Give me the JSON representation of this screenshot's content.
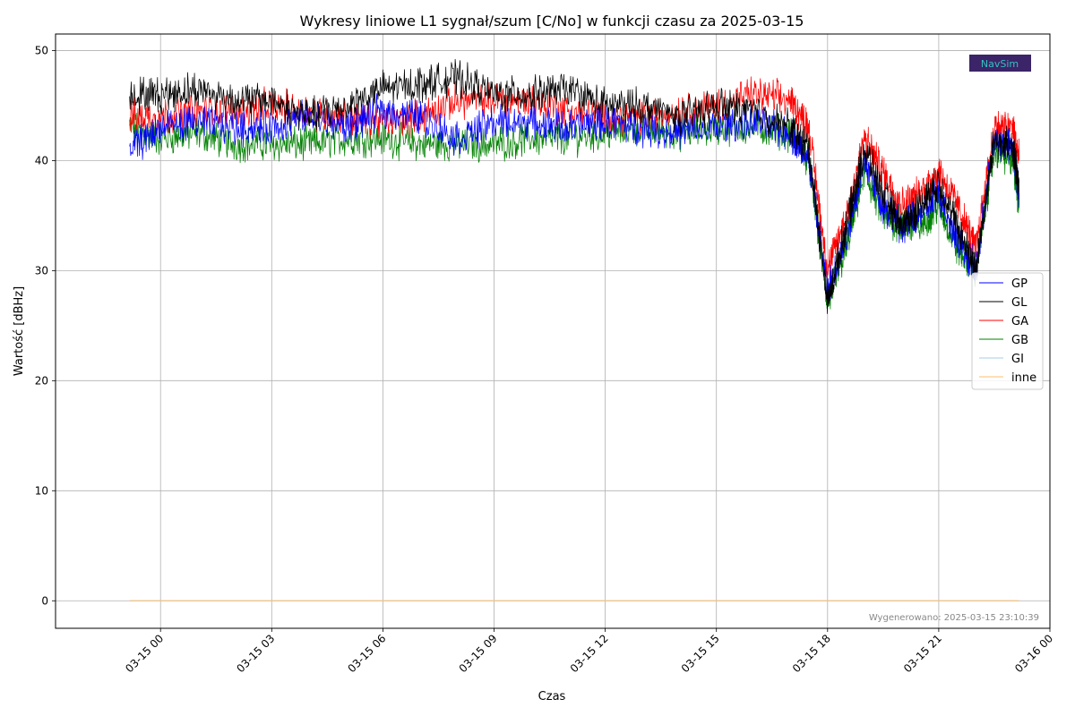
{
  "chart_data": {
    "type": "line",
    "title": "Wykresy liniowe L1 sygnał/szum [C/No] w funkcji czasu za 2025-03-15",
    "xlabel": "Czas",
    "ylabel": "Wartość [dBHz]",
    "xlim": [
      "2025-03-14 21:10",
      "2025-03-16 00:00"
    ],
    "ylim": [
      -2.5,
      51.5
    ],
    "x_ticks": [
      "03-15 00",
      "03-15 03",
      "03-15 06",
      "03-15 09",
      "03-15 12",
      "03-15 15",
      "03-15 18",
      "03-15 21",
      "03-16 00"
    ],
    "y_ticks": [
      0,
      10,
      20,
      30,
      40,
      50
    ],
    "grid": true,
    "legend_position": "right",
    "x": [
      "2025-03-14 23:10",
      "2025-03-15 00:00",
      "2025-03-15 01:00",
      "2025-03-15 02:00",
      "2025-03-15 03:00",
      "2025-03-15 04:00",
      "2025-03-15 05:00",
      "2025-03-15 06:00",
      "2025-03-15 07:00",
      "2025-03-15 08:00",
      "2025-03-15 09:00",
      "2025-03-15 10:00",
      "2025-03-15 11:00",
      "2025-03-15 12:00",
      "2025-03-15 13:00",
      "2025-03-15 14:00",
      "2025-03-15 15:00",
      "2025-03-15 16:00",
      "2025-03-15 17:00",
      "2025-03-15 17:30",
      "2025-03-15 18:00",
      "2025-03-15 18:30",
      "2025-03-15 19:00",
      "2025-03-15 19:30",
      "2025-03-15 20:00",
      "2025-03-15 20:30",
      "2025-03-15 21:00",
      "2025-03-15 21:30",
      "2025-03-15 22:00",
      "2025-03-15 22:30",
      "2025-03-15 23:00",
      "2025-03-15 23:10"
    ],
    "series": [
      {
        "name": "GP",
        "color": "#0000ff",
        "values": [
          41,
          43,
          43.5,
          43,
          43,
          44,
          43,
          44.5,
          44,
          42,
          43.5,
          43.5,
          43,
          43.5,
          43,
          42.5,
          43,
          43.5,
          42.5,
          40,
          28,
          33,
          40,
          36,
          34,
          35,
          37,
          33,
          30,
          42,
          41,
          37
        ]
      },
      {
        "name": "GL",
        "color": "#000000",
        "values": [
          46,
          46,
          46.5,
          45.5,
          45.5,
          44,
          45,
          46.5,
          47,
          47.5,
          46,
          46,
          46.5,
          45,
          45,
          44,
          45,
          44.5,
          43,
          41,
          27,
          34,
          41,
          37,
          34,
          36,
          38,
          34,
          30,
          42,
          41,
          38
        ]
      },
      {
        "name": "GA",
        "color": "#ff0000",
        "values": [
          44,
          44,
          44.5,
          44.5,
          45,
          44.5,
          44,
          43.5,
          44,
          45.5,
          45.5,
          45.5,
          44.5,
          44,
          44,
          44.5,
          45,
          46,
          45.5,
          43,
          30,
          35,
          42,
          39,
          36,
          37,
          39,
          36,
          32,
          43,
          43,
          40
        ]
      },
      {
        "name": "GB",
        "color": "#008000",
        "values": [
          43,
          42,
          42.5,
          41.5,
          41.5,
          41.5,
          42,
          42,
          41.5,
          41.5,
          41.5,
          42,
          42,
          42.5,
          43,
          42.5,
          43,
          43,
          42.5,
          40,
          27,
          32,
          39,
          35,
          34,
          34,
          36,
          32,
          30,
          41,
          40,
          36
        ]
      },
      {
        "name": "GI",
        "color": "#a6cee3",
        "values": [
          0,
          0,
          0,
          0,
          0,
          0,
          0,
          0,
          0,
          0,
          0,
          0,
          0,
          0,
          0,
          0,
          0,
          0,
          0,
          0,
          0,
          0,
          0,
          0,
          0,
          0,
          0,
          0,
          0,
          0,
          0,
          0
        ]
      },
      {
        "name": "inne",
        "color": "#fdbf6f",
        "values": [
          0,
          0,
          0,
          0,
          0,
          0,
          0,
          0,
          0,
          0,
          0,
          0,
          0,
          0,
          0,
          0,
          0,
          0,
          0,
          0,
          0,
          0,
          0,
          0,
          0,
          0,
          0,
          0,
          0,
          0,
          0,
          0
        ]
      }
    ],
    "watermark": "Wygenerowano: 2025-03-15 23:10:39",
    "logo_text": "NavSim"
  }
}
